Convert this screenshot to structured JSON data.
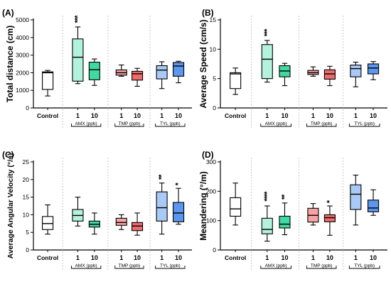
{
  "figure": {
    "groups": [
      {
        "label": "AMX (ppb)"
      },
      {
        "label": "TMP (ppb)"
      },
      {
        "label": "TYL (ppb)"
      }
    ]
  },
  "chart_data": [
    {
      "type": "box",
      "panel": "(A)",
      "ylabel": "Total distance (cm)",
      "ylim": [
        0,
        5000
      ],
      "yticks": [
        0,
        1000,
        2000,
        3000,
        4000,
        5000
      ],
      "categories": [
        "Control",
        "1",
        "10",
        "1",
        "10",
        "1",
        "10"
      ],
      "boxes": [
        {
          "min": 680,
          "q1": 1050,
          "median": 2000,
          "q3": 2050,
          "max": 2130,
          "color": "#ffffff",
          "sig": ""
        },
        {
          "min": 1380,
          "q1": 1520,
          "median": 2880,
          "q3": 3920,
          "max": 4600,
          "color": "#b3f2dd",
          "sig": "***"
        },
        {
          "min": 1280,
          "q1": 1600,
          "median": 2170,
          "q3": 2600,
          "max": 2780,
          "color": "#3fd9a2",
          "sig": ""
        },
        {
          "min": 1800,
          "q1": 1860,
          "median": 2000,
          "q3": 2160,
          "max": 2440,
          "color": "#f7a3a3",
          "sig": ""
        },
        {
          "min": 1230,
          "q1": 1580,
          "median": 1940,
          "q3": 2080,
          "max": 2250,
          "color": "#ef6b6b",
          "sig": ""
        },
        {
          "min": 1100,
          "q1": 1650,
          "median": 2150,
          "q3": 2400,
          "max": 2620,
          "color": "#a9caf7",
          "sig": ""
        },
        {
          "min": 1430,
          "q1": 1800,
          "median": 2380,
          "q3": 2580,
          "max": 2650,
          "color": "#5b96ef",
          "sig": ""
        }
      ]
    },
    {
      "type": "box",
      "panel": "(B)",
      "ylabel": "Average Speed (cm/s)",
      "ylim": [
        0,
        15
      ],
      "yticks": [
        0,
        5,
        10,
        15
      ],
      "categories": [
        "Control",
        "1",
        "10",
        "1",
        "10",
        "1",
        "10"
      ],
      "boxes": [
        {
          "min": 2.3,
          "q1": 3.3,
          "median": 5.8,
          "q3": 6.0,
          "max": 6.8,
          "color": "#ffffff",
          "sig": ""
        },
        {
          "min": 4.4,
          "q1": 5.0,
          "median": 8.3,
          "q3": 10.8,
          "max": 11.5,
          "color": "#b3f2dd",
          "sig": "***"
        },
        {
          "min": 3.8,
          "q1": 5.3,
          "median": 6.3,
          "q3": 7.2,
          "max": 7.6,
          "color": "#3fd9a2",
          "sig": ""
        },
        {
          "min": 5.4,
          "q1": 5.7,
          "median": 6.0,
          "q3": 6.4,
          "max": 7.0,
          "color": "#f7a3a3",
          "sig": ""
        },
        {
          "min": 3.8,
          "q1": 4.9,
          "median": 5.8,
          "q3": 6.5,
          "max": 7.1,
          "color": "#ef6b6b",
          "sig": ""
        },
        {
          "min": 3.6,
          "q1": 5.3,
          "median": 6.7,
          "q3": 7.3,
          "max": 7.8,
          "color": "#a9caf7",
          "sig": ""
        },
        {
          "min": 4.8,
          "q1": 5.8,
          "median": 6.8,
          "q3": 7.5,
          "max": 7.9,
          "color": "#5b96ef",
          "sig": ""
        }
      ]
    },
    {
      "type": "box",
      "panel": "(C)",
      "ylabel": "Average Angular Velocity (°/s)",
      "ylim": [
        0,
        25
      ],
      "yticks": [
        0,
        5,
        10,
        15,
        20,
        25
      ],
      "categories": [
        "Control",
        "1",
        "10",
        "1",
        "10",
        "1",
        "10"
      ],
      "boxes": [
        {
          "min": 4.5,
          "q1": 5.8,
          "median": 7.5,
          "q3": 9.5,
          "max": 12.8,
          "color": "#ffffff",
          "sig": ""
        },
        {
          "min": 6.8,
          "q1": 8.2,
          "median": 9.8,
          "q3": 11.5,
          "max": 15.0,
          "color": "#b3f2dd",
          "sig": ""
        },
        {
          "min": 4.5,
          "q1": 6.5,
          "median": 7.3,
          "q3": 8.2,
          "max": 10.5,
          "color": "#3fd9a2",
          "sig": ""
        },
        {
          "min": 5.8,
          "q1": 7.0,
          "median": 7.8,
          "q3": 9.0,
          "max": 10.0,
          "color": "#f7a3a3",
          "sig": ""
        },
        {
          "min": 4.2,
          "q1": 5.5,
          "median": 6.8,
          "q3": 7.8,
          "max": 10.5,
          "color": "#ef6b6b",
          "sig": ""
        },
        {
          "min": 4.5,
          "q1": 8.2,
          "median": 12.0,
          "q3": 16.5,
          "max": 19.0,
          "color": "#a9caf7",
          "sig": "**"
        },
        {
          "min": 7.3,
          "q1": 8.0,
          "median": 10.5,
          "q3": 13.5,
          "max": 17.5,
          "color": "#5b96ef",
          "sig": "*"
        }
      ]
    },
    {
      "type": "box",
      "panel": "(D)",
      "ylabel": "Meandering (°/m)",
      "ylim": [
        0,
        300
      ],
      "yticks": [
        0,
        100,
        200,
        300
      ],
      "categories": [
        "Control",
        "1",
        "10",
        "1",
        "10",
        "1",
        "10"
      ],
      "boxes": [
        {
          "min": 85,
          "q1": 115,
          "median": 140,
          "q3": 178,
          "max": 228,
          "color": "#ffffff",
          "sig": ""
        },
        {
          "min": 30,
          "q1": 55,
          "median": 70,
          "q3": 108,
          "max": 150,
          "color": "#b3f2dd",
          "sig": "****"
        },
        {
          "min": 52,
          "q1": 75,
          "median": 88,
          "q3": 115,
          "max": 160,
          "color": "#3fd9a2",
          "sig": "**"
        },
        {
          "min": 85,
          "q1": 95,
          "median": 118,
          "q3": 142,
          "max": 158,
          "color": "#f7a3a3",
          "sig": ""
        },
        {
          "min": 50,
          "q1": 96,
          "median": 110,
          "q3": 120,
          "max": 150,
          "color": "#ef6b6b",
          "sig": "*"
        },
        {
          "min": 85,
          "q1": 138,
          "median": 190,
          "q3": 222,
          "max": 255,
          "color": "#a9caf7",
          "sig": ""
        },
        {
          "min": 118,
          "q1": 130,
          "median": 143,
          "q3": 170,
          "max": 205,
          "color": "#5b96ef",
          "sig": ""
        }
      ]
    }
  ]
}
